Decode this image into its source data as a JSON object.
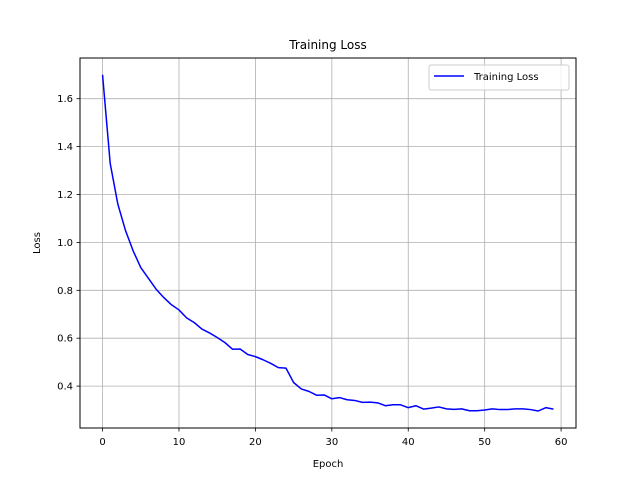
{
  "chart_data": {
    "type": "line",
    "title": "Training Loss",
    "xlabel": "Epoch",
    "ylabel": "Loss",
    "xlim": [
      -2.95,
      61.95
    ],
    "ylim": [
      0.225,
      1.77
    ],
    "xticks": [
      0,
      10,
      20,
      30,
      40,
      50,
      60
    ],
    "yticks": [
      0.4,
      0.6,
      0.8,
      1.0,
      1.2,
      1.4,
      1.6
    ],
    "grid": true,
    "legend": "top-right",
    "series": [
      {
        "name": "Training Loss",
        "color": "#0000ff",
        "x": [
          0,
          1,
          2,
          3,
          4,
          5,
          6,
          7,
          8,
          9,
          10,
          11,
          12,
          13,
          14,
          15,
          16,
          17,
          18,
          19,
          20,
          21,
          22,
          23,
          24,
          25,
          26,
          27,
          28,
          29,
          30,
          31,
          32,
          33,
          34,
          35,
          36,
          37,
          38,
          39,
          40,
          41,
          42,
          43,
          44,
          45,
          46,
          47,
          48,
          49,
          50,
          51,
          52,
          53,
          54,
          55,
          56,
          57,
          58,
          59
        ],
        "values": [
          1.7,
          1.33,
          1.16,
          1.05,
          0.965,
          0.895,
          0.85,
          0.805,
          0.77,
          0.74,
          0.718,
          0.685,
          0.665,
          0.638,
          0.622,
          0.603,
          0.582,
          0.554,
          0.555,
          0.532,
          0.523,
          0.51,
          0.495,
          0.477,
          0.475,
          0.415,
          0.388,
          0.378,
          0.362,
          0.363,
          0.347,
          0.352,
          0.343,
          0.34,
          0.332,
          0.333,
          0.33,
          0.318,
          0.322,
          0.322,
          0.31,
          0.318,
          0.304,
          0.308,
          0.313,
          0.305,
          0.303,
          0.305,
          0.297,
          0.297,
          0.3,
          0.305,
          0.302,
          0.302,
          0.305,
          0.305,
          0.302,
          0.296,
          0.31,
          0.304
        ]
      }
    ]
  }
}
